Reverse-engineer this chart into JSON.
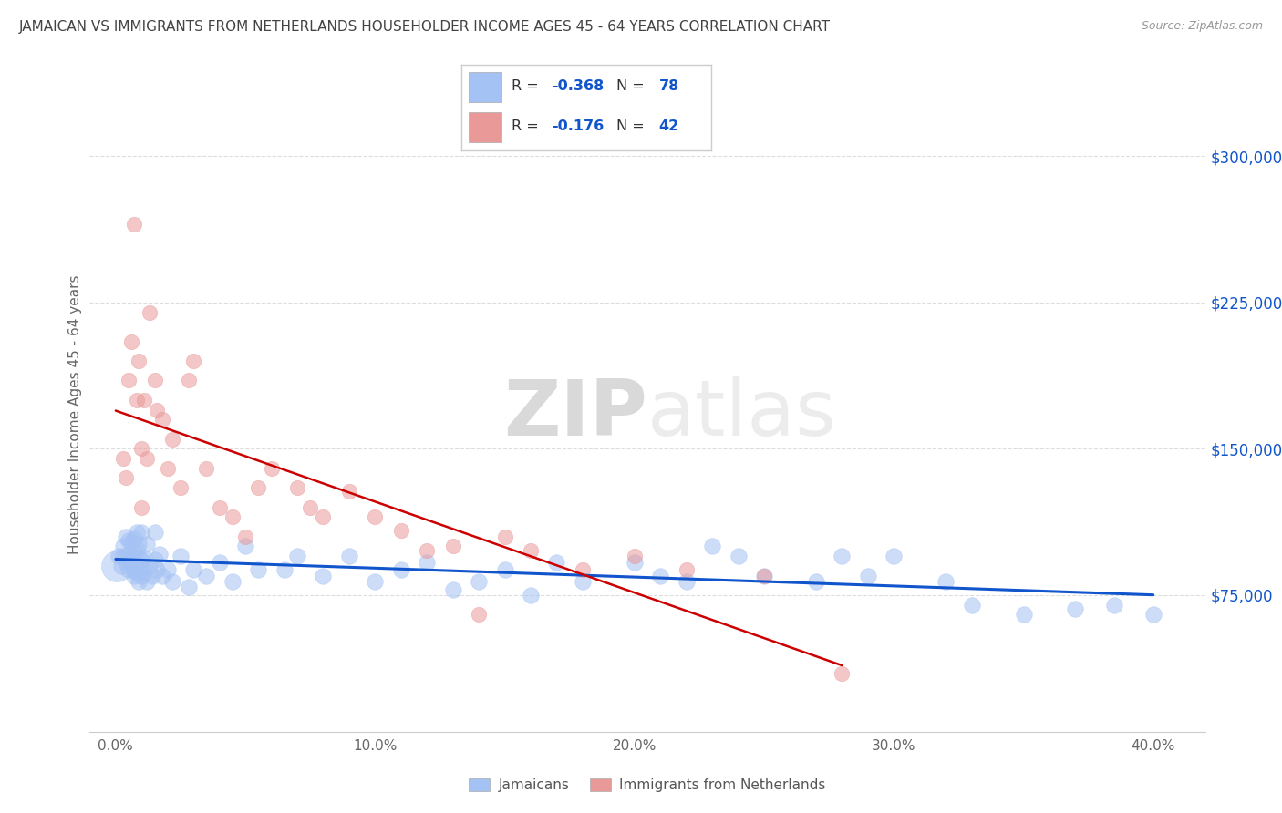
{
  "title": "JAMAICAN VS IMMIGRANTS FROM NETHERLANDS HOUSEHOLDER INCOME AGES 45 - 64 YEARS CORRELATION CHART",
  "source": "Source: ZipAtlas.com",
  "ylabel": "Householder Income Ages 45 - 64 years",
  "x_tick_labels": [
    "0.0%",
    "10.0%",
    "20.0%",
    "30.0%",
    "40.0%"
  ],
  "x_tick_vals": [
    0.0,
    10.0,
    20.0,
    30.0,
    40.0
  ],
  "y_tick_labels": [
    "$75,000",
    "$150,000",
    "$225,000",
    "$300,000"
  ],
  "y_tick_vals": [
    75000,
    150000,
    225000,
    300000
  ],
  "xmin": -1.0,
  "xmax": 42.0,
  "ymin": 5000,
  "ymax": 330000,
  "blue_R": -0.368,
  "blue_N": 78,
  "pink_R": -0.176,
  "pink_N": 42,
  "blue_dot_color": "#a4c2f4",
  "pink_dot_color": "#ea9999",
  "blue_line_color": "#1155cc",
  "pink_line_color": "#cc0000",
  "title_color": "#434343",
  "source_color": "#999999",
  "axis_label_color": "#666666",
  "tick_color": "#666666",
  "right_tick_color": "#1155cc",
  "legend_value_color": "#1155cc",
  "grid_color": "#dddddd",
  "watermark_color": "#d0d0d0",
  "blue_x": [
    0.1,
    0.2,
    0.3,
    0.3,
    0.4,
    0.4,
    0.5,
    0.5,
    0.5,
    0.6,
    0.6,
    0.6,
    0.7,
    0.7,
    0.7,
    0.7,
    0.8,
    0.8,
    0.8,
    0.8,
    0.9,
    0.9,
    0.9,
    1.0,
    1.0,
    1.0,
    1.0,
    1.0,
    1.1,
    1.1,
    1.2,
    1.2,
    1.3,
    1.4,
    1.5,
    1.5,
    1.6,
    1.7,
    1.8,
    2.0,
    2.2,
    2.5,
    2.8,
    3.0,
    3.5,
    4.0,
    4.5,
    5.0,
    5.5,
    6.5,
    7.0,
    8.0,
    9.0,
    10.0,
    11.0,
    12.0,
    13.0,
    14.0,
    15.0,
    16.0,
    17.0,
    18.0,
    20.0,
    21.0,
    22.0,
    23.0,
    24.0,
    25.0,
    27.0,
    28.0,
    29.0,
    30.0,
    32.0,
    33.0,
    35.0,
    37.0,
    38.5,
    40.0
  ],
  "blue_y": [
    95000,
    90000,
    100000,
    95000,
    92000,
    105000,
    88000,
    96000,
    103000,
    90000,
    93000,
    102000,
    85000,
    97000,
    104000,
    88000,
    92000,
    99000,
    107000,
    86000,
    94000,
    82000,
    101000,
    90000,
    85000,
    107000,
    93000,
    88000,
    86000,
    94000,
    82000,
    101000,
    90000,
    85000,
    107000,
    93000,
    88000,
    96000,
    85000,
    88000,
    82000,
    95000,
    79000,
    88000,
    85000,
    92000,
    82000,
    100000,
    88000,
    88000,
    95000,
    85000,
    95000,
    82000,
    88000,
    92000,
    78000,
    82000,
    88000,
    75000,
    92000,
    82000,
    92000,
    85000,
    82000,
    100000,
    95000,
    85000,
    82000,
    95000,
    85000,
    95000,
    82000,
    70000,
    65000,
    68000,
    70000,
    65000
  ],
  "pink_x": [
    0.3,
    0.4,
    0.5,
    0.6,
    0.7,
    0.8,
    0.9,
    1.0,
    1.0,
    1.1,
    1.2,
    1.3,
    1.5,
    1.6,
    1.8,
    2.0,
    2.2,
    2.5,
    2.8,
    3.0,
    3.5,
    4.0,
    4.5,
    5.0,
    5.5,
    6.0,
    7.0,
    7.5,
    8.0,
    9.0,
    10.0,
    11.0,
    12.0,
    13.0,
    14.0,
    15.0,
    16.0,
    18.0,
    20.0,
    22.0,
    25.0,
    28.0
  ],
  "pink_y": [
    145000,
    135000,
    185000,
    205000,
    265000,
    175000,
    195000,
    120000,
    150000,
    175000,
    145000,
    220000,
    185000,
    170000,
    165000,
    140000,
    155000,
    130000,
    185000,
    195000,
    140000,
    120000,
    115000,
    105000,
    130000,
    140000,
    130000,
    120000,
    115000,
    128000,
    115000,
    108000,
    98000,
    100000,
    65000,
    105000,
    98000,
    88000,
    95000,
    88000,
    85000,
    35000
  ]
}
